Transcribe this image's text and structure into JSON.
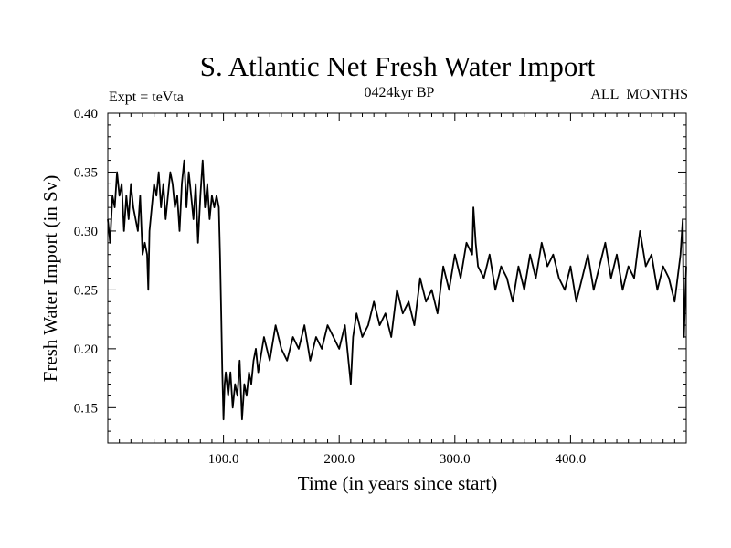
{
  "chart_data": {
    "type": "line",
    "title": "S. Atlantic Net Fresh Water Import",
    "subtitle_left": "Expt = teVta",
    "subtitle_center": "0424kyr BP",
    "subtitle_right": "ALL_MONTHS",
    "xlabel": "Time (in years since start)",
    "ylabel": "Fresh Water Import (in Sv)",
    "xlim": [
      0,
      500
    ],
    "ylim": [
      0.12,
      0.4
    ],
    "xticks_major": [
      100,
      200,
      300,
      400
    ],
    "xtick_labels": [
      "100.0",
      "200.0",
      "300.0",
      "400.0"
    ],
    "yticks_major": [
      0.15,
      0.2,
      0.25,
      0.3,
      0.35,
      0.4
    ],
    "ytick_labels": [
      "0.15",
      "0.20",
      "0.25",
      "0.30",
      "0.35",
      "0.40"
    ],
    "grid": false,
    "series": [
      {
        "x": [
          0,
          2,
          4,
          6,
          8,
          10,
          12,
          14,
          16,
          18,
          20,
          22,
          24,
          26,
          28,
          30,
          32,
          34,
          35,
          36,
          38,
          40,
          42,
          44,
          46,
          48,
          50,
          52,
          54,
          56,
          58,
          60,
          62,
          64,
          66,
          68,
          70,
          72,
          74,
          76,
          78,
          80,
          82,
          84,
          86,
          88,
          90,
          92,
          94,
          96,
          97,
          98,
          99,
          100,
          101,
          102,
          104,
          106,
          108,
          110,
          112,
          114,
          116,
          118,
          120,
          122,
          124,
          126,
          128,
          130,
          135,
          140,
          145,
          150,
          155,
          160,
          165,
          170,
          175,
          180,
          185,
          190,
          195,
          200,
          205,
          210,
          212,
          215,
          220,
          225,
          230,
          235,
          240,
          245,
          250,
          255,
          260,
          265,
          270,
          275,
          280,
          285,
          290,
          295,
          300,
          305,
          310,
          315,
          316,
          318,
          320,
          325,
          330,
          335,
          340,
          345,
          350,
          355,
          360,
          365,
          370,
          375,
          380,
          385,
          390,
          395,
          400,
          405,
          410,
          415,
          420,
          425,
          430,
          435,
          440,
          445,
          450,
          455,
          460,
          465,
          470,
          475,
          480,
          485,
          490,
          495,
          497,
          498,
          500
        ],
        "values": [
          0.31,
          0.29,
          0.33,
          0.32,
          0.35,
          0.33,
          0.34,
          0.3,
          0.33,
          0.31,
          0.34,
          0.32,
          0.31,
          0.3,
          0.33,
          0.28,
          0.29,
          0.28,
          0.25,
          0.3,
          0.32,
          0.34,
          0.33,
          0.35,
          0.32,
          0.34,
          0.31,
          0.33,
          0.35,
          0.34,
          0.32,
          0.33,
          0.3,
          0.34,
          0.36,
          0.32,
          0.35,
          0.33,
          0.31,
          0.34,
          0.29,
          0.33,
          0.36,
          0.32,
          0.34,
          0.31,
          0.33,
          0.32,
          0.33,
          0.32,
          0.28,
          0.23,
          0.18,
          0.14,
          0.17,
          0.18,
          0.16,
          0.18,
          0.15,
          0.17,
          0.16,
          0.19,
          0.14,
          0.17,
          0.16,
          0.18,
          0.17,
          0.19,
          0.2,
          0.18,
          0.21,
          0.19,
          0.22,
          0.2,
          0.19,
          0.21,
          0.2,
          0.22,
          0.19,
          0.21,
          0.2,
          0.22,
          0.21,
          0.2,
          0.22,
          0.17,
          0.21,
          0.23,
          0.21,
          0.22,
          0.24,
          0.22,
          0.23,
          0.21,
          0.25,
          0.23,
          0.24,
          0.22,
          0.26,
          0.24,
          0.25,
          0.23,
          0.27,
          0.25,
          0.28,
          0.26,
          0.29,
          0.28,
          0.32,
          0.29,
          0.27,
          0.26,
          0.28,
          0.25,
          0.27,
          0.26,
          0.24,
          0.27,
          0.25,
          0.28,
          0.26,
          0.29,
          0.27,
          0.28,
          0.26,
          0.25,
          0.27,
          0.24,
          0.26,
          0.28,
          0.25,
          0.27,
          0.29,
          0.26,
          0.28,
          0.25,
          0.27,
          0.26,
          0.3,
          0.27,
          0.28,
          0.25,
          0.27,
          0.26,
          0.24,
          0.28,
          0.31,
          0.21,
          0.27
        ]
      }
    ]
  }
}
